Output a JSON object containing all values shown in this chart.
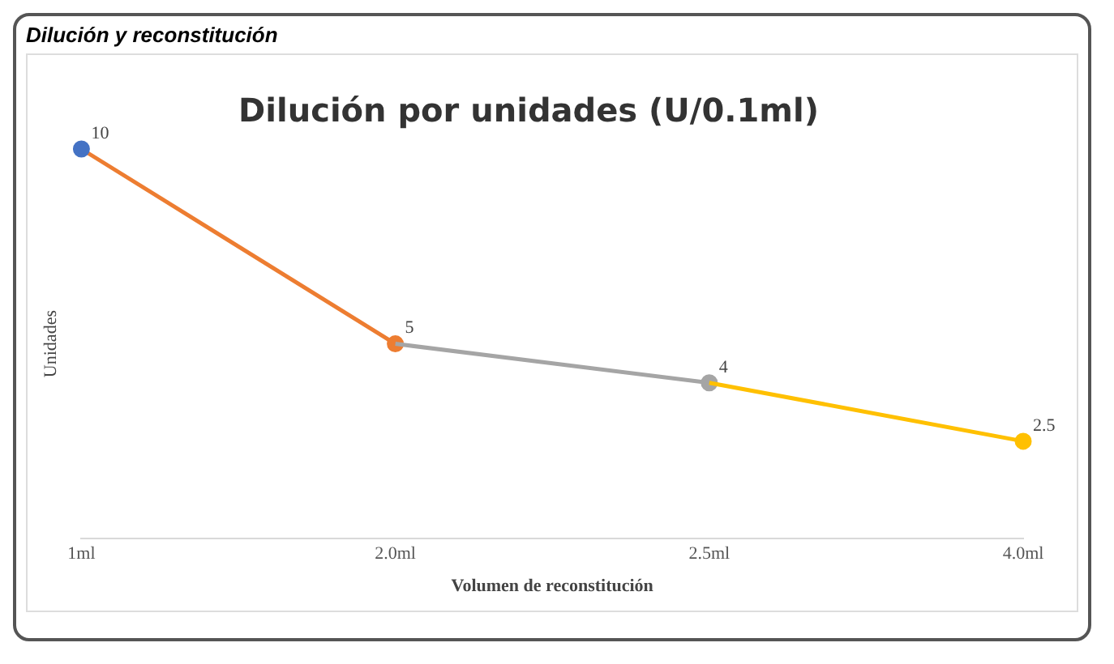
{
  "chart_data": {
    "type": "line",
    "title": "Dilución y reconstitución",
    "subtitle": "Dilución por unidades (U/0.1ml)",
    "xlabel": "Volumen de reconstitución",
    "ylabel": "Unidades",
    "categories": [
      "1ml",
      "2.0ml",
      "2.5ml",
      "4.0ml"
    ],
    "series": [
      {
        "color": "#ed7d31",
        "colors": [
          "#4472c4",
          "#ed7d31",
          null,
          null
        ],
        "values": [
          10,
          5,
          null,
          null
        ],
        "value_labels": [
          "10",
          "5",
          null,
          null
        ]
      },
      {
        "color": "#a5a5a5",
        "colors": [
          null,
          null,
          "#a5a5a5",
          null
        ],
        "values": [
          null,
          5,
          4,
          null
        ],
        "value_labels": [
          null,
          null,
          "4",
          null
        ]
      },
      {
        "color": "#ffc000",
        "colors": [
          null,
          null,
          null,
          "#ffc000"
        ],
        "values": [
          null,
          null,
          4,
          2.5
        ],
        "value_labels": [
          null,
          null,
          null,
          "2.5"
        ]
      }
    ],
    "tick_labels": "x",
    "marker": "circle",
    "grid": false,
    "legend": false
  }
}
